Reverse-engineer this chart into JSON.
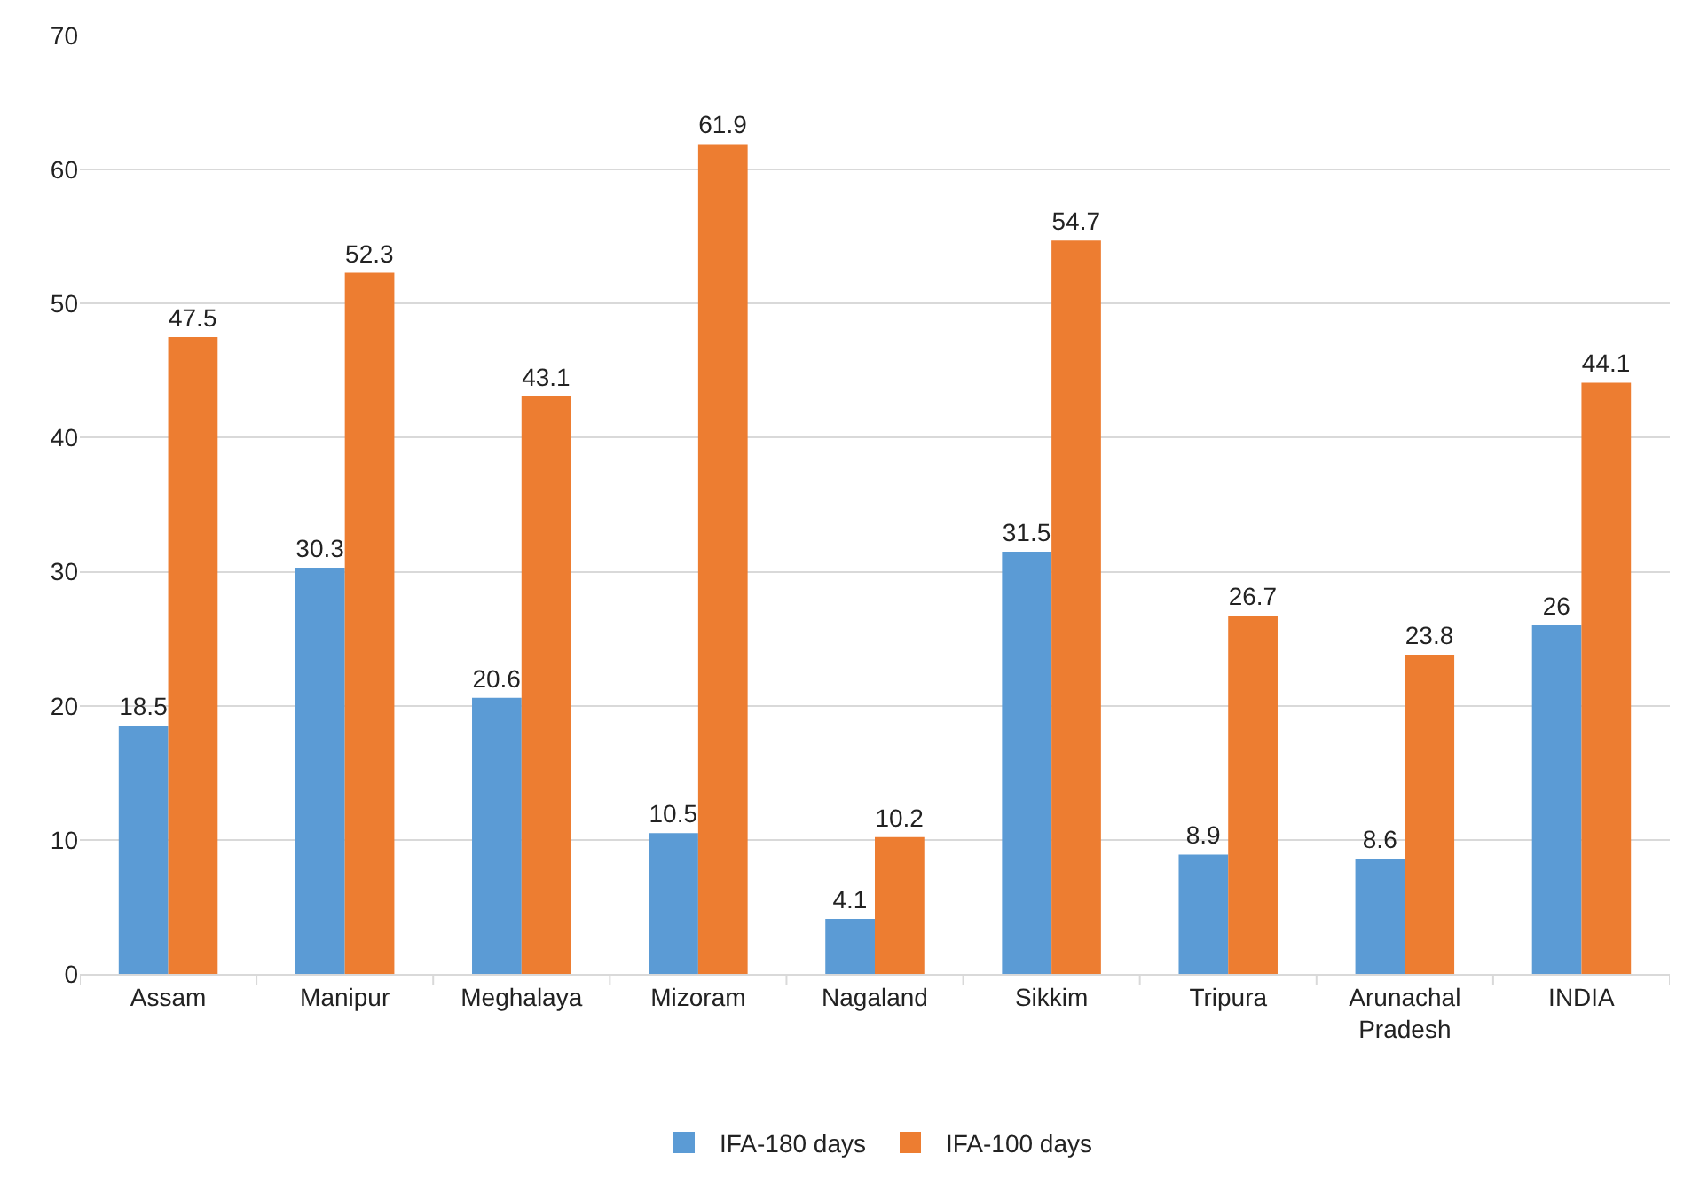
{
  "chart_data": {
    "type": "bar",
    "categories": [
      "Assam",
      "Manipur",
      "Meghalaya",
      "Mizoram",
      "Nagaland",
      "Sikkim",
      "Tripura",
      "Arunachal Pradesh",
      "INDIA"
    ],
    "series": [
      {
        "name": "IFA-180 days",
        "color": "#5b9bd5",
        "values": [
          18.5,
          30.3,
          20.6,
          10.5,
          4.1,
          31.5,
          8.9,
          8.6,
          26
        ]
      },
      {
        "name": "IFA-100 days",
        "color": "#ed7d31",
        "values": [
          47.5,
          52.3,
          43.1,
          61.9,
          10.2,
          54.7,
          26.7,
          23.8,
          44.1
        ]
      }
    ],
    "ylim": [
      0,
      70
    ],
    "yticks": [
      0,
      10,
      20,
      30,
      40,
      50,
      60,
      70
    ],
    "grid": "y",
    "legend": "bottom",
    "data_labels": true
  }
}
